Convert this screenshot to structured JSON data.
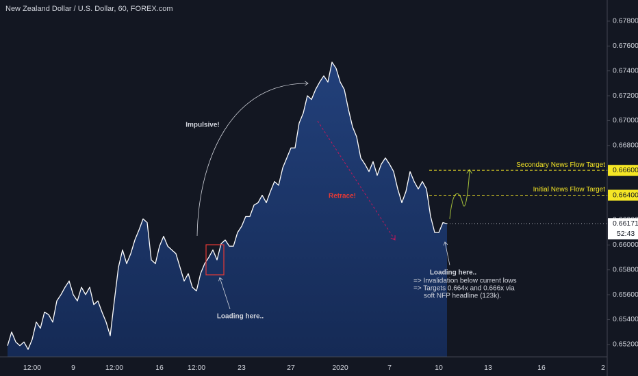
{
  "chart_data": {
    "type": "area",
    "title": "New Zealand Dollar / U.S. Dollar, 60, FOREX.com",
    "color": "#ffffff",
    "fill": "#1c3466",
    "categories": [
      null,
      null,
      null,
      null,
      null,
      null,
      "12:00",
      null,
      null,
      null,
      null,
      null,
      null,
      null,
      null,
      null,
      "9",
      null,
      null,
      null,
      null,
      null,
      null,
      null,
      null,
      null,
      "12:00",
      null,
      null,
      null,
      null,
      null,
      null,
      null,
      null,
      null,
      null,
      "16",
      null,
      null,
      null,
      null,
      null,
      null,
      null,
      null,
      "12:00",
      null,
      null,
      null,
      null,
      null,
      null,
      null,
      null,
      null,
      null,
      "23",
      null,
      null,
      null,
      null,
      null,
      null,
      null,
      null,
      null,
      null,
      null,
      "27",
      null,
      null,
      null,
      null,
      null,
      null,
      null,
      null,
      null,
      null,
      null,
      "2020",
      null,
      null,
      null,
      null,
      null,
      null,
      null,
      null,
      null,
      null,
      null,
      "7",
      null,
      null,
      null,
      null,
      null,
      null,
      null,
      null,
      null,
      null,
      null,
      "10",
      null,
      null,
      null,
      null,
      null,
      null,
      null,
      null,
      null,
      null,
      null,
      "13",
      null,
      null,
      null,
      null,
      null,
      null,
      null,
      null,
      null,
      null,
      null,
      null,
      "16",
      null,
      null,
      null,
      null,
      null,
      null,
      null,
      null,
      null,
      null,
      null,
      null,
      null,
      null,
      "2",
      null
    ],
    "values": [
      0.6519,
      0.653,
      0.6522,
      0.6519,
      0.6522,
      0.6516,
      0.6524,
      0.6538,
      0.6533,
      0.6546,
      0.6544,
      0.6538,
      0.6555,
      0.656,
      0.6566,
      0.6571,
      0.656,
      0.6555,
      0.6566,
      0.656,
      0.6566,
      0.6552,
      0.6555,
      0.6546,
      0.6538,
      0.6527,
      0.6555,
      0.6582,
      0.6596,
      0.6585,
      0.6593,
      0.6604,
      0.6612,
      0.6621,
      0.6618,
      0.6588,
      0.6585,
      0.6599,
      0.6607,
      0.6599,
      0.6596,
      0.6593,
      0.6582,
      0.6571,
      0.6577,
      0.6566,
      0.6563,
      0.6577,
      0.6585,
      0.659,
      0.6596,
      0.6588,
      0.6601,
      0.6604,
      0.6599,
      0.6599,
      0.661,
      0.6615,
      0.6623,
      0.6623,
      0.6632,
      0.6634,
      0.664,
      0.6634,
      0.6643,
      0.6651,
      0.6648,
      0.6662,
      0.667,
      0.6678,
      0.6678,
      0.6698,
      0.6706,
      0.672,
      0.6717,
      0.6725,
      0.6731,
      0.6736,
      0.6731,
      0.6747,
      0.6742,
      0.6731,
      0.6725,
      0.6709,
      0.6695,
      0.6687,
      0.667,
      0.6665,
      0.6659,
      0.6667,
      0.6656,
      0.6665,
      0.667,
      0.6665,
      0.6659,
      0.6645,
      0.6634,
      0.6643,
      0.6659,
      0.6651,
      0.6645,
      0.6651,
      0.6645,
      0.6623,
      0.661,
      0.661,
      0.6618,
      0.66171,
      null,
      null,
      null,
      null,
      null,
      null,
      null,
      null,
      null,
      null,
      null,
      null,
      null,
      null,
      null,
      null,
      null,
      null,
      null,
      null,
      null,
      null,
      null,
      null,
      null,
      null,
      null,
      null,
      null,
      null,
      null,
      null,
      null,
      null,
      null,
      null,
      null,
      null,
      null
    ],
    "ylim": [
      0.651,
      0.6797
    ],
    "yticks": [
      {
        "value": 0.652,
        "label": "0.65200"
      },
      {
        "value": 0.654,
        "label": "0.65400"
      },
      {
        "value": 0.656,
        "label": "0.65600"
      },
      {
        "value": 0.658,
        "label": "0.65800"
      },
      {
        "value": 0.66,
        "label": "0.66000"
      },
      {
        "value": 0.662,
        "label": "0.66200"
      },
      {
        "value": 0.664,
        "label": "0.66400"
      },
      {
        "value": 0.666,
        "label": "0.66600"
      },
      {
        "value": 0.668,
        "label": "0.66800"
      },
      {
        "value": 0.67,
        "label": "0.67000"
      },
      {
        "value": 0.672,
        "label": "0.67200"
      },
      {
        "value": 0.674,
        "label": "0.67400"
      },
      {
        "value": 0.676,
        "label": "0.67600"
      },
      {
        "value": 0.678,
        "label": "0.67800"
      }
    ],
    "last_price": 0.66171,
    "countdown": "52:43",
    "targets": [
      {
        "name": "Secondary News Flow Target",
        "value": 0.666,
        "label": "0.66600"
      },
      {
        "name": "Initial News Flow Target",
        "value": 0.664,
        "label": "0.66400"
      }
    ],
    "annotations": {
      "impulsive": "Impulsive!",
      "retrace": "Retrace!",
      "loading_1": "Loading here..",
      "loading_2": "Loading here..",
      "notes": [
        "=> Invalidation below current lows",
        "=> Targets 0.664x and 0.666x via",
        "soft NFP headline (123k)."
      ]
    }
  }
}
